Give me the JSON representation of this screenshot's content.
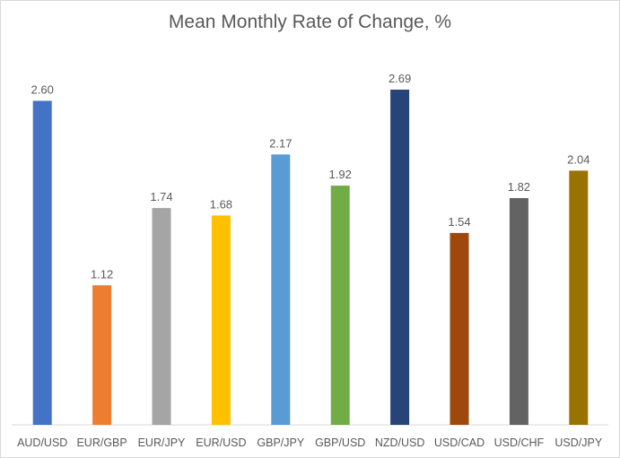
{
  "chart_data": {
    "type": "bar",
    "title": "Mean Monthly Rate of Change, %",
    "xlabel": "",
    "ylabel": "",
    "ylim": [
      0,
      2.69
    ],
    "grid": false,
    "legend": "none",
    "categories": [
      "AUD/USD",
      "EUR/GBP",
      "EUR/JPY",
      "EUR/USD",
      "GBP/JPY",
      "GBP/USD",
      "NZD/USD",
      "USD/CAD",
      "USD/CHF",
      "USD/JPY"
    ],
    "values": [
      2.6,
      1.12,
      1.74,
      1.68,
      2.17,
      1.92,
      2.69,
      1.54,
      1.82,
      2.04
    ],
    "value_labels": [
      "2.60",
      "1.12",
      "1.74",
      "1.68",
      "2.17",
      "1.92",
      "2.69",
      "1.54",
      "1.82",
      "2.04"
    ],
    "colors": [
      "#4472c4",
      "#ed7d31",
      "#a5a5a5",
      "#ffc000",
      "#5b9bd5",
      "#70ad47",
      "#264478",
      "#9e480e",
      "#636363",
      "#997300"
    ]
  }
}
